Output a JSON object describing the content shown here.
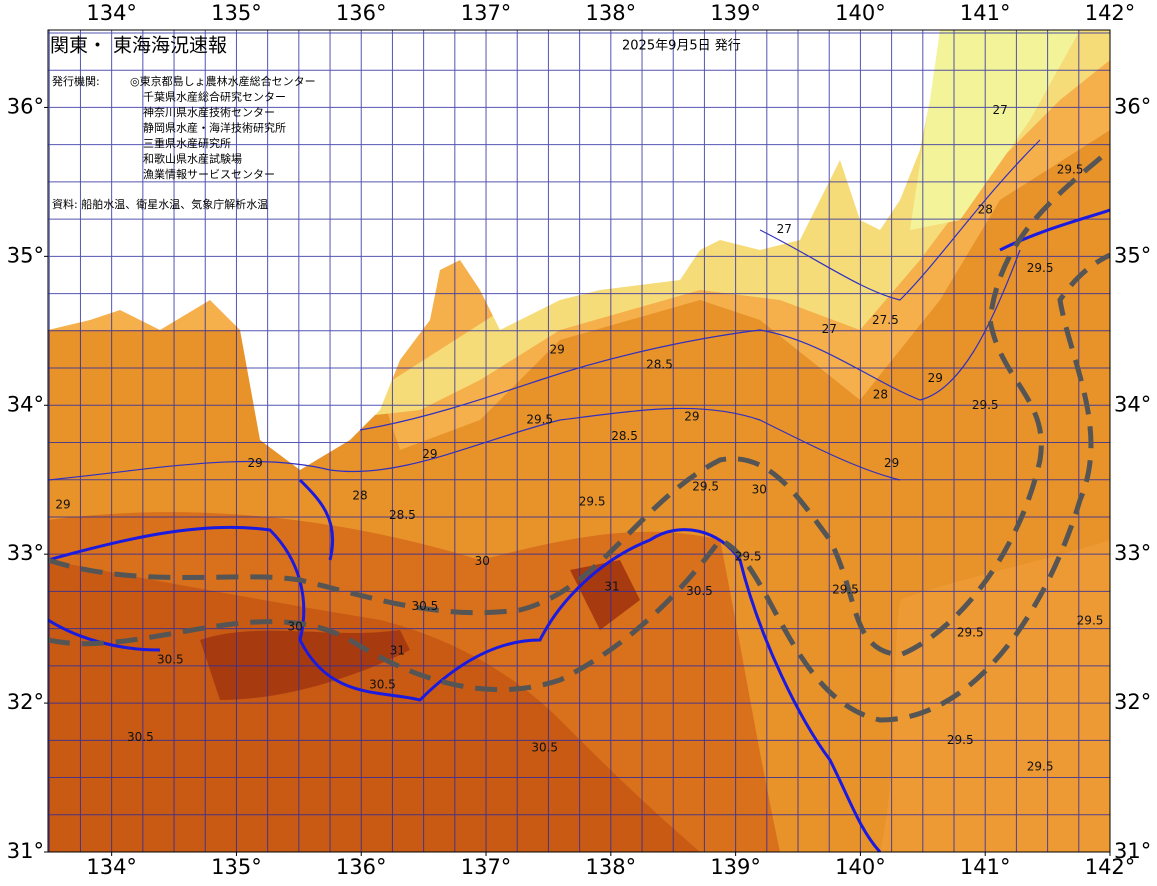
{
  "header": {
    "title": "関東・ 東海海況速報",
    "date": "2025年9月5日 発行",
    "issuer_label": "発行機関:",
    "issuers": [
      "◎東京都島しょ農林水産総合センター",
      "千葉県水産総合研究センター",
      "神奈川県水産技術センター",
      "静岡県水産・海洋技術研究所",
      "三重県水産研究所",
      "和歌山県水産試験場",
      "漁業情報サービスセンター"
    ],
    "source": "資料: 船舶水温、衛星水温、気象庁解析水温"
  },
  "map": {
    "lonlim": [
      133.49,
      142
    ],
    "latlim": [
      31,
      36.52
    ],
    "lon_ticks": [
      {
        "value": 134,
        "label": "134°"
      },
      {
        "value": 135,
        "label": "135°"
      },
      {
        "value": 136,
        "label": "136°"
      },
      {
        "value": 137,
        "label": "137°"
      },
      {
        "value": 138,
        "label": "138°"
      },
      {
        "value": 139,
        "label": "139°"
      },
      {
        "value": 140,
        "label": "140°"
      },
      {
        "value": 141,
        "label": "141°"
      },
      {
        "value": 142,
        "label": "142°"
      }
    ],
    "lat_ticks": [
      {
        "value": 31,
        "label": "31°"
      },
      {
        "value": 32,
        "label": "32°"
      },
      {
        "value": 33,
        "label": "33°"
      },
      {
        "value": 34,
        "label": "34°"
      },
      {
        "value": 35,
        "label": "35°"
      },
      {
        "value": 36,
        "label": "36°"
      }
    ],
    "contour_labels": [
      {
        "text": "29",
        "lon": 133.61,
        "lat": 33.33
      },
      {
        "text": "29",
        "lon": 135.15,
        "lat": 33.61
      },
      {
        "text": "28",
        "lon": 135.99,
        "lat": 33.39
      },
      {
        "text": "28.5",
        "lon": 136.33,
        "lat": 33.26
      },
      {
        "text": "29",
        "lon": 136.55,
        "lat": 33.67
      },
      {
        "text": "29",
        "lon": 137.57,
        "lat": 34.37
      },
      {
        "text": "28.5",
        "lon": 138.39,
        "lat": 34.27
      },
      {
        "text": "29",
        "lon": 138.65,
        "lat": 33.92
      },
      {
        "text": "29.5",
        "lon": 137.43,
        "lat": 33.9
      },
      {
        "text": "28.5",
        "lon": 138.11,
        "lat": 33.79
      },
      {
        "text": "29.5",
        "lon": 137.85,
        "lat": 33.35
      },
      {
        "text": "29.5",
        "lon": 138.76,
        "lat": 33.45
      },
      {
        "text": "30",
        "lon": 139.19,
        "lat": 33.43
      },
      {
        "text": "29.5",
        "lon": 139.1,
        "lat": 32.98
      },
      {
        "text": "30",
        "lon": 136.97,
        "lat": 32.95
      },
      {
        "text": "30.5",
        "lon": 136.51,
        "lat": 32.65
      },
      {
        "text": "31",
        "lon": 136.29,
        "lat": 32.35
      },
      {
        "text": "31",
        "lon": 138.01,
        "lat": 32.78
      },
      {
        "text": "30.5",
        "lon": 138.71,
        "lat": 32.75
      },
      {
        "text": "30.5",
        "lon": 136.17,
        "lat": 32.12
      },
      {
        "text": "30.5",
        "lon": 134.23,
        "lat": 31.77
      },
      {
        "text": "30.5",
        "lon": 137.47,
        "lat": 31.7
      },
      {
        "text": "29.5",
        "lon": 139.88,
        "lat": 32.76
      },
      {
        "text": "29.5",
        "lon": 140.88,
        "lat": 32.47
      },
      {
        "text": "29.5",
        "lon": 140.8,
        "lat": 31.75
      },
      {
        "text": "29.5",
        "lon": 141.44,
        "lat": 31.57
      },
      {
        "text": "29.5",
        "lon": 141.84,
        "lat": 32.55
      },
      {
        "text": "29",
        "lon": 140.6,
        "lat": 34.18
      },
      {
        "text": "29",
        "lon": 140.25,
        "lat": 33.61
      },
      {
        "text": "28",
        "lon": 140.16,
        "lat": 34.07
      },
      {
        "text": "27.5",
        "lon": 140.2,
        "lat": 34.57
      },
      {
        "text": "27",
        "lon": 139.39,
        "lat": 35.18
      },
      {
        "text": "27",
        "lon": 139.75,
        "lat": 34.51
      },
      {
        "text": "28",
        "lon": 141.0,
        "lat": 35.31
      },
      {
        "text": "27",
        "lon": 141.12,
        "lat": 35.98
      },
      {
        "text": "29.5",
        "lon": 141.68,
        "lat": 35.58
      },
      {
        "text": "29.5",
        "lon": 141.44,
        "lat": 34.92
      },
      {
        "text": "29.5",
        "lon": 141.0,
        "lat": 34.0
      },
      {
        "text": "30",
        "lon": 135.47,
        "lat": 32.51
      },
      {
        "text": "30.5",
        "lon": 134.47,
        "lat": 32.29
      }
    ]
  }
}
